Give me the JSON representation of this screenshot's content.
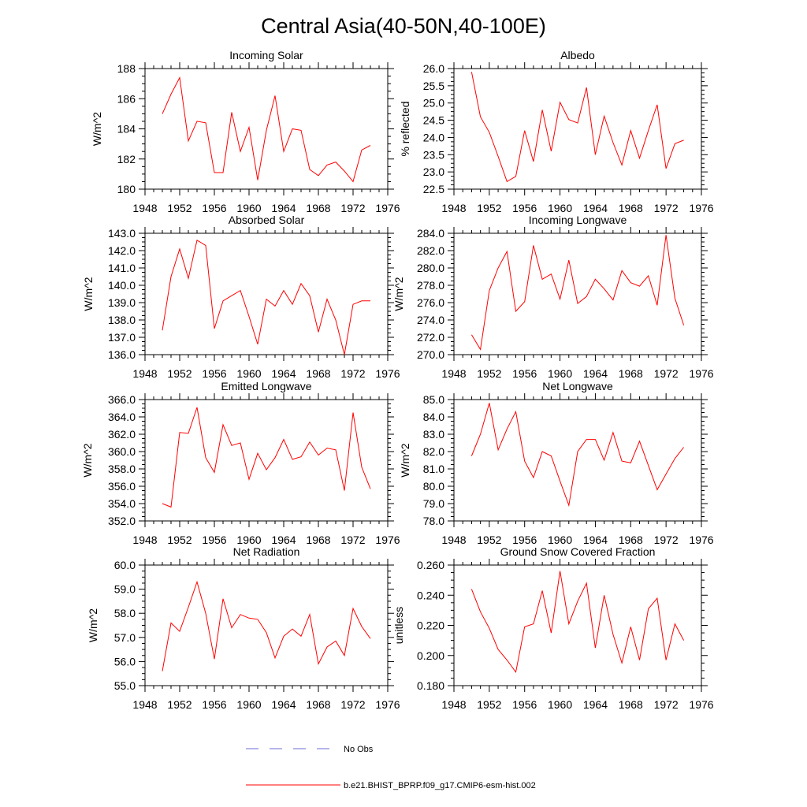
{
  "page_title": "Central Asia(40-50N,40-100E)",
  "colors": {
    "model": "#ff0000",
    "obs": "#6b6bd6",
    "axis": "#000000"
  },
  "legend": {
    "obs_label": "No Obs",
    "model_label": "b.e21.BHIST_BPRP.f09_g17.CMIP6-esm-hist.002"
  },
  "chart_data": [
    {
      "type": "line",
      "title": "Incoming Solar",
      "ylabel": "W/m^2",
      "xlim": [
        1948,
        1976
      ],
      "ylim": [
        180,
        188
      ],
      "yticks": [
        180,
        182,
        184,
        186,
        188
      ],
      "ytick_labels": [
        "180",
        "182",
        "184",
        "186",
        "188"
      ],
      "xticks": [
        1948,
        1952,
        1956,
        1960,
        1964,
        1968,
        1972,
        1976
      ],
      "xtick_labels": [
        "1948",
        "1952",
        "1956",
        "1960",
        "1964",
        "1968",
        "1972",
        "1976"
      ],
      "x": [
        1950,
        1951,
        1952,
        1953,
        1954,
        1955,
        1956,
        1957,
        1958,
        1959,
        1960,
        1961,
        1962,
        1963,
        1964,
        1965,
        1966,
        1967,
        1968,
        1969,
        1970,
        1971,
        1972,
        1973,
        1974
      ],
      "values": [
        185.0,
        186.3,
        187.4,
        183.2,
        184.5,
        184.4,
        181.1,
        181.1,
        185.1,
        182.5,
        184.1,
        180.6,
        183.9,
        186.2,
        182.5,
        184.0,
        183.9,
        181.3,
        180.9,
        181.6,
        181.8,
        181.2,
        180.5,
        182.6,
        182.9
      ]
    },
    {
      "type": "line",
      "title": "Albedo",
      "ylabel": "% reflected",
      "xlim": [
        1948,
        1976
      ],
      "ylim": [
        22.5,
        26.0
      ],
      "yticks": [
        22.5,
        23.0,
        23.5,
        24.0,
        24.5,
        25.0,
        25.5,
        26.0
      ],
      "ytick_labels": [
        "22.5",
        "23.0",
        "23.5",
        "24.0",
        "24.5",
        "25.0",
        "25.5",
        "26.0"
      ],
      "xticks": [
        1948,
        1952,
        1956,
        1960,
        1964,
        1968,
        1972,
        1976
      ],
      "xtick_labels": [
        "1948",
        "1952",
        "1956",
        "1960",
        "1964",
        "1968",
        "1972",
        "1976"
      ],
      "x": [
        1950,
        1951,
        1952,
        1953,
        1954,
        1955,
        1956,
        1957,
        1958,
        1959,
        1960,
        1961,
        1962,
        1963,
        1964,
        1965,
        1966,
        1967,
        1968,
        1969,
        1970,
        1971,
        1972,
        1973,
        1974
      ],
      "values": [
        25.9,
        24.6,
        24.15,
        23.45,
        22.72,
        22.87,
        24.2,
        23.3,
        24.8,
        23.6,
        25.02,
        24.52,
        24.42,
        25.45,
        23.5,
        24.62,
        23.85,
        23.2,
        24.2,
        23.4,
        24.2,
        24.95,
        23.1,
        23.82,
        23.92
      ]
    },
    {
      "type": "line",
      "title": "Absorbed Solar",
      "ylabel": "W/m^2",
      "xlim": [
        1948,
        1976
      ],
      "ylim": [
        136.0,
        143.0
      ],
      "yticks": [
        136,
        137,
        138,
        139,
        140,
        141,
        142,
        143
      ],
      "ytick_labels": [
        "136.0",
        "137.0",
        "138.0",
        "139.0",
        "140.0",
        "141.0",
        "142.0",
        "143.0"
      ],
      "xticks": [
        1948,
        1952,
        1956,
        1960,
        1964,
        1968,
        1972,
        1976
      ],
      "xtick_labels": [
        "1948",
        "1952",
        "1956",
        "1960",
        "1964",
        "1968",
        "1972",
        "1976"
      ],
      "x": [
        1950,
        1951,
        1952,
        1953,
        1954,
        1955,
        1956,
        1957,
        1958,
        1959,
        1960,
        1961,
        1962,
        1963,
        1964,
        1965,
        1966,
        1967,
        1968,
        1969,
        1970,
        1971,
        1972,
        1973,
        1974
      ],
      "values": [
        137.4,
        140.5,
        142.1,
        140.4,
        142.6,
        142.3,
        137.5,
        139.1,
        139.4,
        139.7,
        138.2,
        136.6,
        139.2,
        138.8,
        139.7,
        138.9,
        140.1,
        139.4,
        137.3,
        139.2,
        138.0,
        136.0,
        138.9,
        139.1,
        139.1
      ]
    },
    {
      "type": "line",
      "title": "Incoming Longwave",
      "ylabel": "W/m^2",
      "xlim": [
        1948,
        1976
      ],
      "ylim": [
        270.0,
        284.0
      ],
      "yticks": [
        270,
        272,
        274,
        276,
        278,
        280,
        282,
        284
      ],
      "ytick_labels": [
        "270.0",
        "272.0",
        "274.0",
        "276.0",
        "278.0",
        "280.0",
        "282.0",
        "284.0"
      ],
      "xticks": [
        1948,
        1952,
        1956,
        1960,
        1964,
        1968,
        1972,
        1976
      ],
      "xtick_labels": [
        "1948",
        "1952",
        "1956",
        "1960",
        "1964",
        "1968",
        "1972",
        "1976"
      ],
      "x": [
        1950,
        1951,
        1952,
        1953,
        1954,
        1955,
        1956,
        1957,
        1958,
        1959,
        1960,
        1961,
        1962,
        1963,
        1964,
        1965,
        1966,
        1967,
        1968,
        1969,
        1970,
        1971,
        1972,
        1973,
        1974
      ],
      "values": [
        272.3,
        270.6,
        277.4,
        280.0,
        281.9,
        275.0,
        276.1,
        282.6,
        278.7,
        279.3,
        276.4,
        280.9,
        275.9,
        276.7,
        278.7,
        277.6,
        276.3,
        279.7,
        278.3,
        277.9,
        279.1,
        275.7,
        283.8,
        276.5,
        273.4
      ]
    },
    {
      "type": "line",
      "title": "Emitted Longwave",
      "ylabel": "W/m^2",
      "xlim": [
        1948,
        1976
      ],
      "ylim": [
        352.0,
        366.0
      ],
      "yticks": [
        352,
        354,
        356,
        358,
        360,
        362,
        364,
        366
      ],
      "ytick_labels": [
        "352.0",
        "354.0",
        "356.0",
        "358.0",
        "360.0",
        "362.0",
        "364.0",
        "366.0"
      ],
      "xticks": [
        1948,
        1952,
        1956,
        1960,
        1964,
        1968,
        1972,
        1976
      ],
      "xtick_labels": [
        "1948",
        "1952",
        "1956",
        "1960",
        "1964",
        "1968",
        "1972",
        "1976"
      ],
      "x": [
        1950,
        1951,
        1952,
        1953,
        1954,
        1955,
        1956,
        1957,
        1958,
        1959,
        1960,
        1961,
        1962,
        1963,
        1964,
        1965,
        1966,
        1967,
        1968,
        1969,
        1970,
        1971,
        1972,
        1973,
        1974
      ],
      "values": [
        354.0,
        353.6,
        362.2,
        362.1,
        365.1,
        359.3,
        357.6,
        363.1,
        360.7,
        361.0,
        356.8,
        359.8,
        357.9,
        359.3,
        361.4,
        359.1,
        359.4,
        361.1,
        359.6,
        360.4,
        360.2,
        355.5,
        364.5,
        358.2,
        355.7
      ]
    },
    {
      "type": "line",
      "title": "Net Longwave",
      "ylabel": "W/m^2",
      "xlim": [
        1948,
        1976
      ],
      "ylim": [
        78.0,
        85.0
      ],
      "yticks": [
        78,
        79,
        80,
        81,
        82,
        83,
        84,
        85
      ],
      "ytick_labels": [
        "78.0",
        "79.0",
        "80.0",
        "81.0",
        "82.0",
        "83.0",
        "84.0",
        "85.0"
      ],
      "xticks": [
        1948,
        1952,
        1956,
        1960,
        1964,
        1968,
        1972,
        1976
      ],
      "xtick_labels": [
        "1948",
        "1952",
        "1956",
        "1960",
        "1964",
        "1968",
        "1972",
        "1976"
      ],
      "x": [
        1950,
        1951,
        1952,
        1953,
        1954,
        1955,
        1956,
        1957,
        1958,
        1959,
        1960,
        1961,
        1962,
        1963,
        1964,
        1965,
        1966,
        1967,
        1968,
        1969,
        1970,
        1971,
        1972,
        1973,
        1974
      ],
      "values": [
        81.75,
        83.0,
        84.8,
        82.1,
        83.3,
        84.3,
        81.45,
        80.5,
        82.0,
        81.75,
        80.3,
        78.9,
        82.0,
        82.7,
        82.7,
        81.5,
        83.1,
        81.45,
        81.35,
        82.6,
        81.2,
        79.8,
        80.7,
        81.6,
        82.25
      ]
    },
    {
      "type": "line",
      "title": "Net Radiation",
      "ylabel": "W/m^2",
      "xlim": [
        1948,
        1976
      ],
      "ylim": [
        55.0,
        60.0
      ],
      "yticks": [
        55,
        56,
        57,
        58,
        59,
        60
      ],
      "ytick_labels": [
        "55.0",
        "56.0",
        "57.0",
        "58.0",
        "59.0",
        "60.0"
      ],
      "xticks": [
        1948,
        1952,
        1956,
        1960,
        1964,
        1968,
        1972,
        1976
      ],
      "xtick_labels": [
        "1948",
        "1952",
        "1956",
        "1960",
        "1964",
        "1968",
        "1972",
        "1976"
      ],
      "x": [
        1950,
        1951,
        1952,
        1953,
        1954,
        1955,
        1956,
        1957,
        1958,
        1959,
        1960,
        1961,
        1962,
        1963,
        1964,
        1965,
        1966,
        1967,
        1968,
        1969,
        1970,
        1971,
        1972,
        1973,
        1974
      ],
      "values": [
        55.6,
        57.6,
        57.25,
        58.25,
        59.3,
        58.0,
        56.1,
        58.6,
        57.4,
        57.95,
        57.8,
        57.75,
        57.2,
        56.15,
        57.05,
        57.35,
        57.05,
        57.95,
        55.9,
        56.6,
        56.85,
        56.25,
        58.2,
        57.45,
        56.95
      ]
    },
    {
      "type": "line",
      "title": "Ground Snow Covered Fraction",
      "ylabel": "unitless",
      "xlim": [
        1948,
        1976
      ],
      "ylim": [
        0.18,
        0.26
      ],
      "yticks": [
        0.18,
        0.2,
        0.22,
        0.24,
        0.26
      ],
      "ytick_labels": [
        "0.180",
        "0.200",
        "0.220",
        "0.240",
        "0.260"
      ],
      "xticks": [
        1948,
        1952,
        1956,
        1960,
        1964,
        1968,
        1972,
        1976
      ],
      "xtick_labels": [
        "1948",
        "1952",
        "1956",
        "1960",
        "1964",
        "1968",
        "1972",
        "1976"
      ],
      "x": [
        1950,
        1951,
        1952,
        1953,
        1954,
        1955,
        1956,
        1957,
        1958,
        1959,
        1960,
        1961,
        1962,
        1963,
        1964,
        1965,
        1966,
        1967,
        1968,
        1969,
        1970,
        1971,
        1972,
        1973,
        1974
      ],
      "values": [
        0.244,
        0.229,
        0.218,
        0.204,
        0.197,
        0.189,
        0.219,
        0.221,
        0.243,
        0.215,
        0.256,
        0.221,
        0.236,
        0.248,
        0.205,
        0.24,
        0.214,
        0.195,
        0.219,
        0.197,
        0.231,
        0.238,
        0.197,
        0.221,
        0.21
      ]
    }
  ]
}
